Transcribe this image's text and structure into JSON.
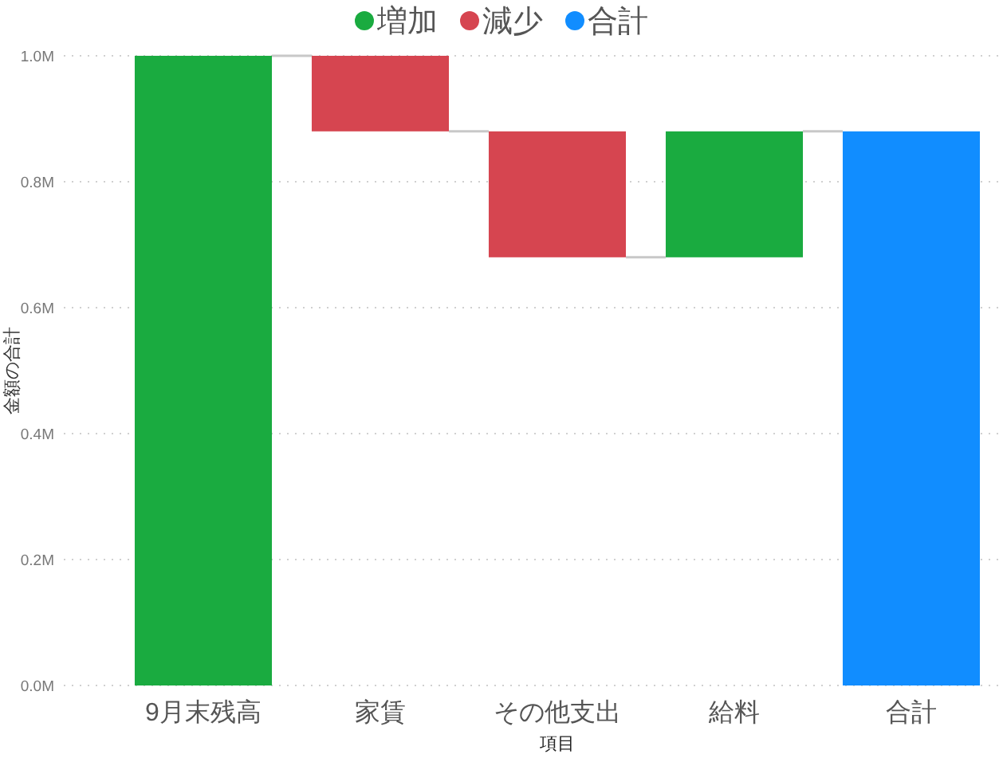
{
  "chart_data": {
    "type": "bar",
    "xlabel": "項目",
    "ylabel": "金額の合計",
    "categories": [
      "9月末残高",
      "家賃",
      "その他支出",
      "給料",
      "合計"
    ],
    "series": [
      {
        "name": "増加",
        "color": "#1aab40",
        "values": [
          1000000,
          null,
          null,
          200000,
          null
        ],
        "base": [
          0,
          null,
          null,
          680000,
          null
        ]
      },
      {
        "name": "減少",
        "color": "#d64550",
        "values": [
          null,
          -120000,
          -200000,
          null,
          null
        ],
        "base": [
          null,
          1000000,
          880000,
          null,
          null
        ]
      },
      {
        "name": "合計",
        "color": "#118dff",
        "values": [
          null,
          null,
          null,
          null,
          880000
        ],
        "base": [
          null,
          null,
          null,
          null,
          0
        ]
      }
    ],
    "ylim": [
      0,
      1000000
    ],
    "yticks": [
      {
        "value": 0,
        "label": "0.0M"
      },
      {
        "value": 200000,
        "label": "0.2M"
      },
      {
        "value": 400000,
        "label": "0.4M"
      },
      {
        "value": 600000,
        "label": "0.6M"
      },
      {
        "value": 800000,
        "label": "0.8M"
      },
      {
        "value": 1000000,
        "label": "1.0M"
      }
    ],
    "grid": "y",
    "legend": "top"
  }
}
